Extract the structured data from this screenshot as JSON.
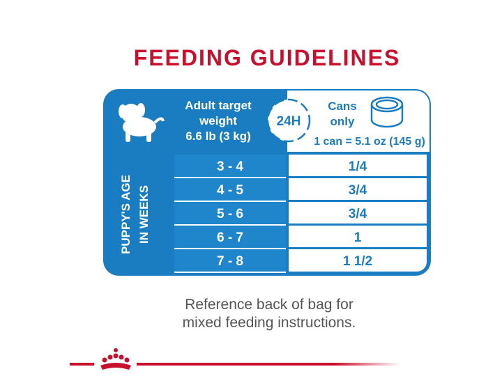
{
  "title": "FEEDING GUIDELINES",
  "table": {
    "header": {
      "weight": [
        "Adult target",
        "weight",
        "6.6 lb (3 kg)"
      ],
      "badge": "24H",
      "cans": [
        "Cans",
        "only"
      ],
      "can_size": "1 can = 5.1 oz (145 g)"
    },
    "row_header": [
      "PUPPY'S AGE",
      "IN WEEKS"
    ],
    "rows": [
      [
        "3 - 4",
        "1/4"
      ],
      [
        "4 - 5",
        "3/4"
      ],
      [
        "5 - 6",
        "3/4"
      ],
      [
        "6 - 7",
        "1"
      ],
      [
        "7 - 8",
        "1 1/2"
      ]
    ]
  },
  "footer": [
    "Reference back of bag for",
    "mixed feeding instructions."
  ]
}
